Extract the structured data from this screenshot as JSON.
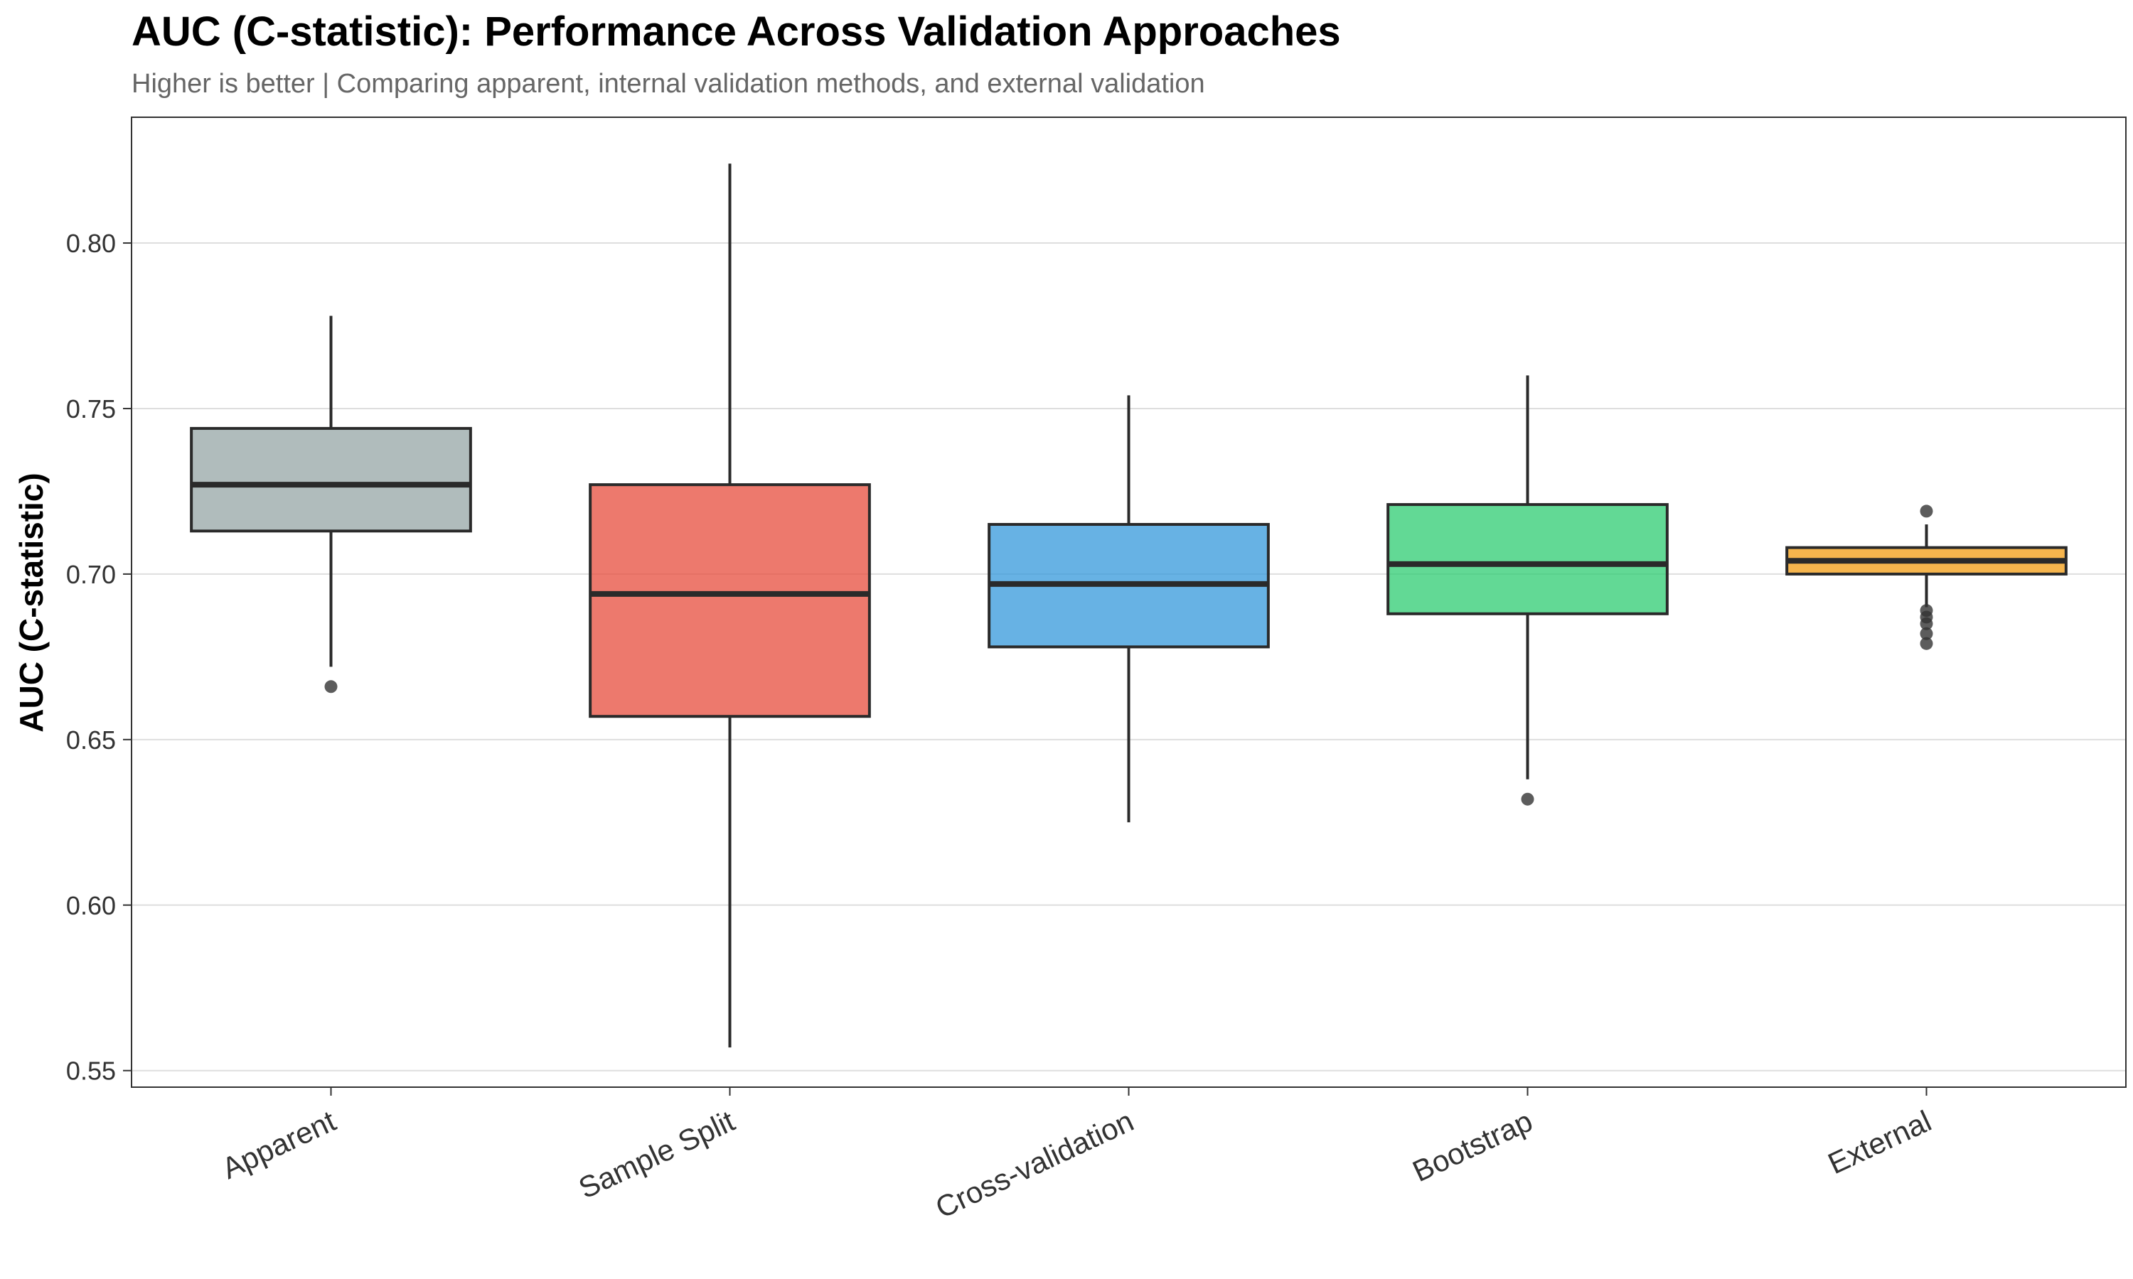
{
  "chart_data": {
    "type": "boxplot",
    "title": "AUC (C-statistic): Performance Across Validation Approaches",
    "subtitle": "Higher is better | Comparing apparent, internal validation methods, and external validation",
    "xlabel": "",
    "ylabel": "AUC (C-statistic)",
    "ylim": [
      0.545,
      0.838
    ],
    "yticks": [
      0.55,
      0.6,
      0.65,
      0.7,
      0.75,
      0.8
    ],
    "ytick_labels": [
      "0.55",
      "0.60",
      "0.65",
      "0.70",
      "0.75",
      "0.80"
    ],
    "grid": "horizontal",
    "legend": "none",
    "categories": [
      "Apparent",
      "Sample Split",
      "Cross-validation",
      "Bootstrap",
      "External"
    ],
    "boxes": [
      {
        "category": "Apparent",
        "whisker_low": 0.672,
        "q1": 0.713,
        "median": 0.727,
        "q3": 0.744,
        "whisker_high": 0.778,
        "outliers": [
          0.666
        ],
        "color": "#95A5A6"
      },
      {
        "category": "Sample Split",
        "whisker_low": 0.557,
        "q1": 0.657,
        "median": 0.694,
        "q3": 0.727,
        "whisker_high": 0.824,
        "outliers": [],
        "color": "#E74C3C"
      },
      {
        "category": "Cross-validation",
        "whisker_low": 0.625,
        "q1": 0.678,
        "median": 0.697,
        "q3": 0.715,
        "whisker_high": 0.754,
        "outliers": [],
        "color": "#3498DB"
      },
      {
        "category": "Bootstrap",
        "whisker_low": 0.638,
        "q1": 0.688,
        "median": 0.703,
        "q3": 0.721,
        "whisker_high": 0.76,
        "outliers": [
          0.632
        ],
        "color": "#2ECC71"
      },
      {
        "category": "External",
        "whisker_low": 0.69,
        "q1": 0.7,
        "median": 0.704,
        "q3": 0.708,
        "whisker_high": 0.715,
        "outliers": [
          0.719,
          0.689,
          0.687,
          0.685,
          0.682,
          0.679
        ],
        "color": "#F39C12"
      }
    ]
  }
}
